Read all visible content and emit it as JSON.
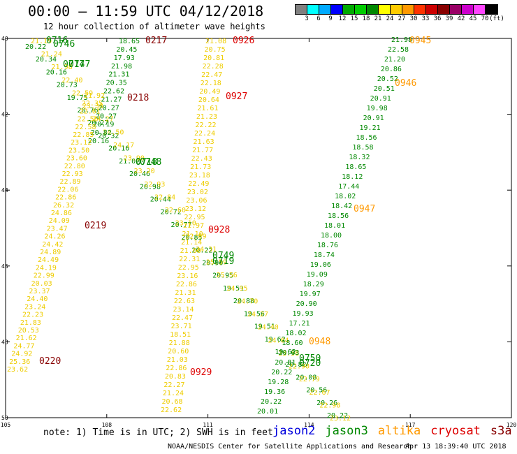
{
  "header": {
    "title": "00:00 – 11:59 UTC 04/12/2018",
    "subtitle": "12 hour collection of altimeter wave heights"
  },
  "colorbar": {
    "colors": [
      "#808080",
      "#00ffff",
      "#00aaff",
      "#0000ff",
      "#00aa00",
      "#00cc00",
      "#008800",
      "#ffff00",
      "#ffcc00",
      "#ff9900",
      "#ff3300",
      "#cc0000",
      "#880000",
      "#990066",
      "#cc00cc",
      "#ff44ff",
      "#000000"
    ],
    "labels": [
      "3",
      "6",
      "9",
      "12",
      "15",
      "18",
      "21",
      "24",
      "27",
      "30",
      "33",
      "36",
      "39",
      "42",
      "45",
      "70",
      "(ft)"
    ]
  },
  "axes": {
    "x_ticks": [
      "105",
      "108",
      "111",
      "114",
      "117",
      "120"
    ],
    "y_ticks": [
      "40",
      "42",
      "44",
      "46",
      "48",
      "50"
    ]
  },
  "passes": [
    {
      "id": "0716",
      "satellite": "jason3",
      "color": "#008800"
    },
    {
      "id": "0746",
      "satellite": "jason3",
      "color": "#008800"
    },
    {
      "id": "0717",
      "satellite": "jason3",
      "color": "#008800"
    },
    {
      "id": "0747",
      "satellite": "jason3",
      "color": "#008800"
    },
    {
      "id": "0718",
      "satellite": "jason3",
      "color": "#008800"
    },
    {
      "id": "0748",
      "satellite": "jason3",
      "color": "#008800"
    },
    {
      "id": "0749",
      "satellite": "jason3",
      "color": "#008800"
    },
    {
      "id": "0719",
      "satellite": "jason3",
      "color": "#008800"
    },
    {
      "id": "0750",
      "satellite": "jason3",
      "color": "#008800"
    },
    {
      "id": "0720",
      "satellite": "jason3",
      "color": "#008800"
    },
    {
      "id": "0217",
      "satellite": "s3a",
      "color": "#880000"
    },
    {
      "id": "0218",
      "satellite": "s3a",
      "color": "#880000"
    },
    {
      "id": "0219",
      "satellite": "s3a",
      "color": "#880000"
    },
    {
      "id": "0220",
      "satellite": "s3a",
      "color": "#880000"
    },
    {
      "id": "0926",
      "satellite": "cryosat",
      "color": "#dd0000"
    },
    {
      "id": "0927",
      "satellite": "cryosat",
      "color": "#dd0000"
    },
    {
      "id": "0928",
      "satellite": "cryosat",
      "color": "#dd0000"
    },
    {
      "id": "0929",
      "satellite": "cryosat",
      "color": "#dd0000"
    },
    {
      "id": "0945",
      "satellite": "altika",
      "color": "#ff9900"
    },
    {
      "id": "0946",
      "satellite": "altika",
      "color": "#ff9900"
    },
    {
      "id": "0947",
      "satellite": "altika",
      "color": "#ff9900"
    },
    {
      "id": "0948",
      "satellite": "altika",
      "color": "#ff9900"
    }
  ],
  "tracks": [
    {
      "name": "track-west-diagonal-jason3",
      "color": "#008800",
      "values": [
        "20.22",
        "20.34",
        "20.16",
        "20.73",
        "19.75",
        "20.76",
        "20.27",
        "20.32",
        "20.16",
        "21.02",
        "20.46",
        "20.98",
        "20.44",
        "20.72",
        "20.77",
        "20.85",
        "20.22",
        "20.90",
        "20.95",
        "19.51",
        "20.88",
        "19.56",
        "19.51",
        "19.62",
        "19.62",
        "20.82",
        "20.08",
        "20.56",
        "20.26",
        "20.22"
      ]
    },
    {
      "name": "track-west-diagonal-yellow",
      "color": "#eecc00",
      "values": [
        "21.19",
        "21.24",
        "21.98",
        "22.40",
        "22.59",
        "23.38",
        "24.27",
        "24.50",
        "24.17",
        "23.90",
        "23.20",
        "22.93",
        "22.84",
        "22.60",
        "23.10",
        "22.89",
        "24.31",
        "25.59",
        "25.56",
        "24.95",
        "24.70",
        "24.27",
        "24.40",
        "24.04",
        "23.58",
        "22.90",
        "22.79",
        "22.67",
        "22.98",
        "23.12"
      ]
    },
    {
      "name": "track-s3a-0217",
      "color": "#008800",
      "values": [
        "18.65",
        "20.45",
        "17.93",
        "21.98",
        "21.31",
        "20.35",
        "22.62",
        "21.27",
        "20.27",
        "20.27",
        "20.19",
        "20.82",
        "20.16"
      ]
    },
    {
      "name": "track-s3a-0217-yellow",
      "color": "#eecc00",
      "values": [
        "21.92",
        "22.35",
        "22.61",
        "22.56",
        "22.58",
        "22.85",
        "23.12",
        "23.50",
        "23.60",
        "22.80",
        "22.93",
        "22.89",
        "22.06",
        "22.86",
        "26.32",
        "24.86",
        "24.09",
        "23.47",
        "24.26",
        "24.42",
        "24.89",
        "24.49",
        "24.19",
        "22.99",
        "20.03",
        "23.37",
        "24.40",
        "23.24",
        "22.23",
        "21.83",
        "20.53",
        "21.62",
        "24.77",
        "24.92",
        "25.36",
        "23.62"
      ]
    },
    {
      "name": "track-cryosat-0926",
      "color": "#eecc00",
      "values": [
        "21.08",
        "20.75",
        "20.81",
        "22.28",
        "22.47",
        "22.18",
        "20.49",
        "20.64",
        "21.61",
        "21.23",
        "22.22",
        "22.24",
        "21.63",
        "21.77",
        "22.43",
        "21.73",
        "23.18",
        "22.49",
        "23.02",
        "23.06",
        "23.12",
        "22.95",
        "21.97",
        "21.10",
        "21.14",
        "21.66",
        "22.31",
        "22.95",
        "23.16",
        "22.86",
        "21.31",
        "22.63",
        "23.14",
        "22.47",
        "23.71",
        "18.51",
        "21.88",
        "20.60",
        "21.03",
        "22.86",
        "20.83",
        "22.27",
        "21.24",
        "20.68",
        "22.62"
      ]
    },
    {
      "name": "track-altika-0945",
      "color": "#008800",
      "values": [
        "21.98",
        "22.58",
        "21.20",
        "20.86",
        "20.52",
        "20.51",
        "20.91",
        "19.98",
        "20.91",
        "19.21",
        "18.56",
        "18.58",
        "18.32",
        "18.65",
        "18.12",
        "17.44",
        "18.02",
        "18.42",
        "18.56",
        "18.01",
        "18.00",
        "18.76",
        "18.74",
        "19.06",
        "19.09",
        "18.29",
        "19.97",
        "20.90",
        "19.93",
        "17.21",
        "18.02",
        "18.60",
        "20.03",
        "20.81",
        "20.22",
        "19.28",
        "19.36",
        "20.22",
        "20.01"
      ]
    }
  ],
  "notes": {
    "note": "note: 1) Time is in UTC; 2) SWH is in feet",
    "legend": [
      {
        "label": "jason2",
        "color": "#0000dd"
      },
      {
        "label": "jason3",
        "color": "#008800"
      },
      {
        "label": "altika",
        "color": "#ff9900"
      },
      {
        "label": "cryosat",
        "color": "#dd0000"
      },
      {
        "label": "s3a",
        "color": "#880000"
      }
    ],
    "footer": "NOAA/NESDIS Center for Satellite Applications and Research",
    "footer_time": "Apr 13 18:39:40 UTC 2018"
  }
}
